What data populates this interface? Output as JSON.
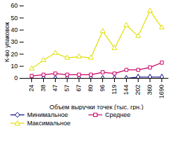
{
  "chart_data": {
    "type": "line",
    "x_label": "Объем выручки точек (тыс. грн.)",
    "y_label": "К-во упаковок",
    "categories": [
      "24",
      "38",
      "47",
      "57",
      "67",
      "80",
      "96",
      "119",
      "144",
      "202",
      "360",
      "1690"
    ],
    "series": [
      {
        "name": "Минимальное",
        "color": "#000080",
        "marker": "diamond",
        "values": [
          0,
          0,
          0,
          0,
          0,
          0,
          0,
          0,
          0,
          1,
          1,
          1
        ]
      },
      {
        "name": "Среднее",
        "color": "#cc0066",
        "marker": "square",
        "values": [
          2,
          3,
          4,
          3,
          3,
          3,
          5,
          4,
          7,
          7,
          9,
          13
        ]
      },
      {
        "name": "Максимальное",
        "color": "#e0e000",
        "marker": "triangle",
        "values": [
          8,
          15,
          21,
          17,
          18,
          17,
          39,
          25,
          44,
          35,
          56,
          42
        ]
      }
    ],
    "ylim": [
      0,
      60
    ],
    "yticks": [
      0,
      10,
      20,
      30,
      40,
      50,
      60
    ],
    "grid": false,
    "legend": "bottom"
  }
}
